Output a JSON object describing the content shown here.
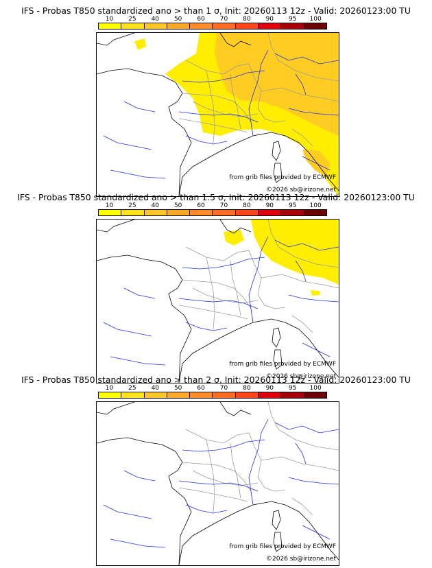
{
  "colors": {
    "scale": [
      "#ffff00",
      "#ffe21d",
      "#ffc52a",
      "#ffa92c",
      "#ff8c2a",
      "#ff6c24",
      "#ff4519",
      "#e0000c",
      "#a80008",
      "#6b0004"
    ],
    "river": "#1f2fe6",
    "border": "#9c9c9c",
    "coast": "#000000"
  },
  "colorbar_ticks": [
    "10",
    "25",
    "40",
    "50",
    "60",
    "70",
    "80",
    "90",
    "95",
    "100"
  ],
  "panels": [
    {
      "title": "IFS - Probas T850  standardized ano > than 1 σ, Init: 20260113 12z - Valid: 20260123:00 TU",
      "credit_source": "from grib files provided by ECMWF",
      "credit_copyright": "©2026 sb@irizone.net",
      "coverage": "high"
    },
    {
      "title": "IFS - Probas T850  standardized ano > than 1.5 σ, Init: 20260113 12z - Valid: 20260123:00 TU",
      "credit_source": "from grib files provided by ECMWF",
      "credit_copyright": "©2026 sb@irizone.net",
      "coverage": "low"
    },
    {
      "title": "IFS - Probas T850  standardized ano > than 2 σ, Init: 20260113 12z - Valid: 20260123:00 TU",
      "credit_source": "from grib files provided by ECMWF",
      "credit_copyright": "©2026 sb@irizone.net",
      "coverage": "none"
    }
  ]
}
